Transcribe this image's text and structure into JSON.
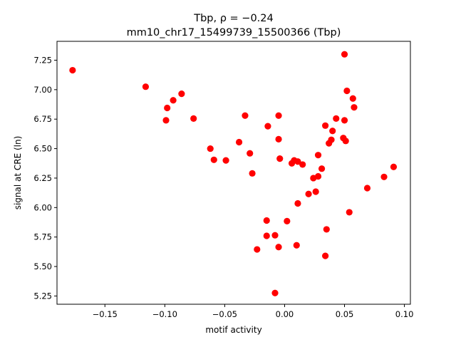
{
  "chart_data": {
    "type": "scatter",
    "title_line1": "Tbp, ρ = −0.24",
    "title_line2": "mm10_chr17_15499739_15500366 (Tbp)",
    "xlabel": "motif activity",
    "ylabel": "signal at CRE (ln)",
    "xlim": [
      -0.19,
      0.105
    ],
    "ylim": [
      5.18,
      7.41
    ],
    "xticks": [
      -0.15,
      -0.1,
      -0.05,
      0.0,
      0.05,
      0.1
    ],
    "xtick_labels": [
      "−0.15",
      "−0.10",
      "−0.05",
      "0.00",
      "0.05",
      "0.10"
    ],
    "yticks": [
      5.25,
      5.5,
      5.75,
      6.0,
      6.25,
      6.5,
      6.75,
      7.0,
      7.25
    ],
    "ytick_labels": [
      "5.25",
      "5.50",
      "5.75",
      "6.00",
      "6.25",
      "6.50",
      "6.75",
      "7.00",
      "7.25"
    ],
    "marker_color": "#ff0000",
    "grid": false,
    "points": [
      {
        "x": -0.177,
        "y": 7.165
      },
      {
        "x": -0.116,
        "y": 7.025
      },
      {
        "x": -0.098,
        "y": 6.845
      },
      {
        "x": -0.093,
        "y": 6.91
      },
      {
        "x": -0.086,
        "y": 6.965
      },
      {
        "x": -0.099,
        "y": 6.74
      },
      {
        "x": -0.076,
        "y": 6.755
      },
      {
        "x": -0.062,
        "y": 6.5
      },
      {
        "x": -0.059,
        "y": 6.405
      },
      {
        "x": -0.049,
        "y": 6.4
      },
      {
        "x": -0.038,
        "y": 6.555
      },
      {
        "x": -0.033,
        "y": 6.78
      },
      {
        "x": -0.029,
        "y": 6.46
      },
      {
        "x": -0.027,
        "y": 6.29
      },
      {
        "x": -0.014,
        "y": 6.69
      },
      {
        "x": -0.005,
        "y": 6.78
      },
      {
        "x": -0.005,
        "y": 6.58
      },
      {
        "x": -0.004,
        "y": 6.415
      },
      {
        "x": 0.006,
        "y": 6.375
      },
      {
        "x": 0.008,
        "y": 6.4
      },
      {
        "x": 0.011,
        "y": 6.39
      },
      {
        "x": 0.015,
        "y": 6.365
      },
      {
        "x": -0.015,
        "y": 5.89
      },
      {
        "x": -0.015,
        "y": 5.76
      },
      {
        "x": -0.008,
        "y": 5.765
      },
      {
        "x": 0.002,
        "y": 5.885
      },
      {
        "x": -0.023,
        "y": 5.645
      },
      {
        "x": -0.005,
        "y": 5.665
      },
      {
        "x": 0.01,
        "y": 5.68
      },
      {
        "x": 0.011,
        "y": 6.035
      },
      {
        "x": 0.02,
        "y": 6.115
      },
      {
        "x": 0.024,
        "y": 6.25
      },
      {
        "x": 0.026,
        "y": 6.135
      },
      {
        "x": 0.028,
        "y": 6.265
      },
      {
        "x": 0.028,
        "y": 6.445
      },
      {
        "x": 0.031,
        "y": 6.33
      },
      {
        "x": 0.034,
        "y": 6.695
      },
      {
        "x": 0.037,
        "y": 6.545
      },
      {
        "x": 0.039,
        "y": 6.575
      },
      {
        "x": 0.04,
        "y": 6.65
      },
      {
        "x": 0.043,
        "y": 6.755
      },
      {
        "x": 0.049,
        "y": 6.59
      },
      {
        "x": 0.05,
        "y": 6.74
      },
      {
        "x": 0.051,
        "y": 6.565
      },
      {
        "x": 0.05,
        "y": 7.3
      },
      {
        "x": 0.052,
        "y": 6.99
      },
      {
        "x": 0.057,
        "y": 6.925
      },
      {
        "x": 0.058,
        "y": 6.85
      },
      {
        "x": 0.054,
        "y": 5.96
      },
      {
        "x": 0.035,
        "y": 5.815
      },
      {
        "x": 0.034,
        "y": 5.59
      },
      {
        "x": -0.008,
        "y": 5.275
      },
      {
        "x": 0.069,
        "y": 6.165
      },
      {
        "x": 0.083,
        "y": 6.26
      },
      {
        "x": 0.091,
        "y": 6.345
      }
    ]
  }
}
